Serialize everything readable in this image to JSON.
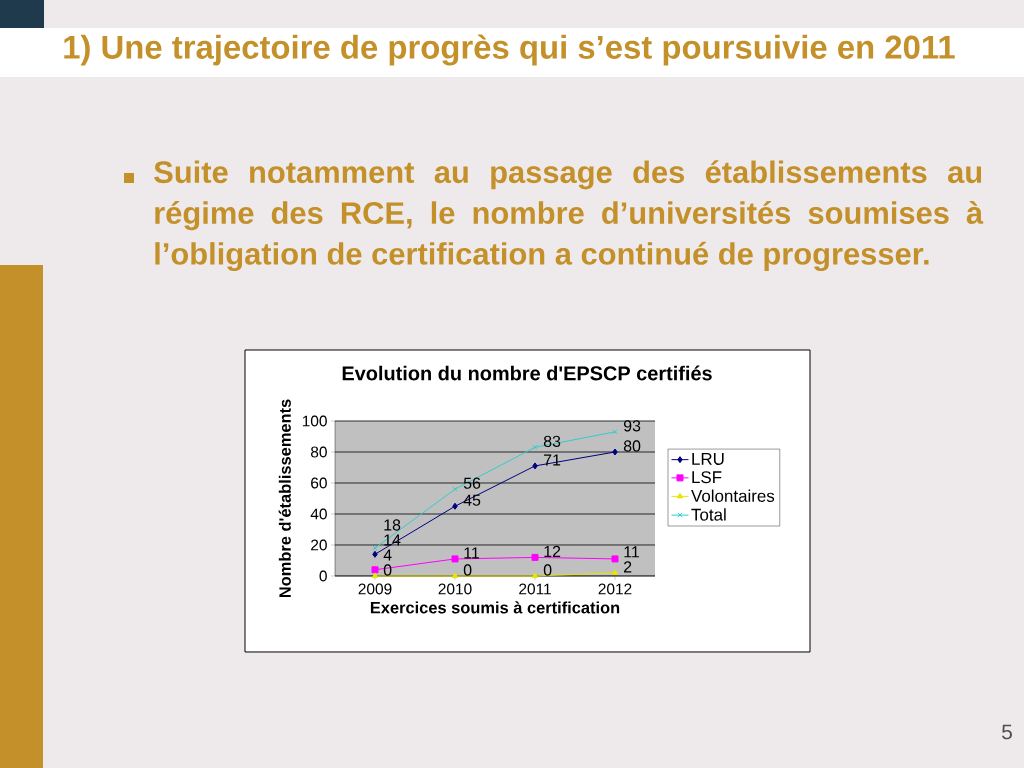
{
  "chart_data": {
    "type": "line",
    "title": "Evolution du nombre d'EPSCP certifiés",
    "xlabel": "Exercices soumis à certification",
    "ylabel": "Nombre d'établissements",
    "categories": [
      "2009",
      "2010",
      "2011",
      "2012"
    ],
    "series": [
      {
        "name": "LRU",
        "color": "#000080",
        "marker": "diamond",
        "values": [
          14,
          45,
          71,
          80
        ]
      },
      {
        "name": "LSF",
        "color": "#ff00ff",
        "marker": "square",
        "values": [
          4,
          11,
          12,
          11
        ]
      },
      {
        "name": "Volontaires",
        "color": "#e6e600",
        "marker": "triangle",
        "values": [
          0,
          0,
          0,
          2
        ]
      },
      {
        "name": "Total",
        "color": "#33cccc",
        "marker": "cross",
        "values": [
          18,
          56,
          83,
          93
        ]
      }
    ],
    "ylim": [
      0,
      100
    ],
    "yticks": [
      0,
      20,
      40,
      60,
      80,
      100
    ],
    "grid": "y",
    "legend": "right",
    "data_labels": true,
    "annotations": [
      "1) Une trajectoire de progrès qui s’est poursuivie en 2011",
      "Suite notamment au passage des établissements au régime des RCE, le nombre d’universités soumises à l’obligation de certification a continué de progresser.",
      "5"
    ]
  }
}
